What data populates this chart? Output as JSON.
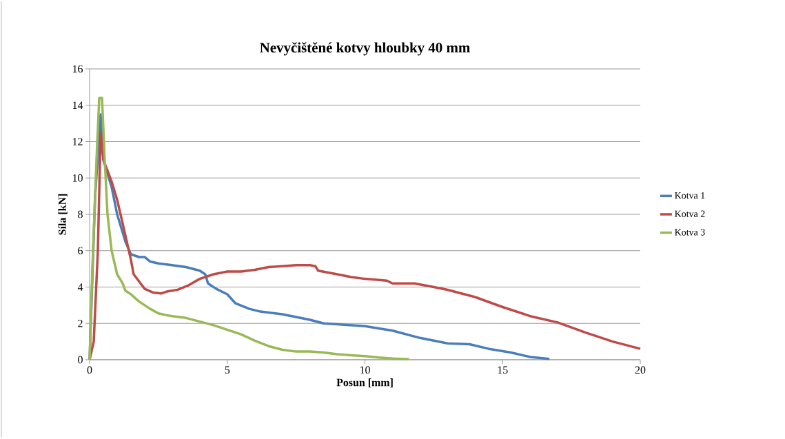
{
  "chart_data": {
    "type": "line",
    "title": "Nevyčištěné kotvy hloubky  40 mm",
    "xlabel": "Posun [mm]",
    "ylabel": "Síla [kN]",
    "xlim": [
      0,
      20
    ],
    "xticks": [
      0,
      5,
      10,
      15,
      20
    ],
    "ylim": [
      0,
      16
    ],
    "yticks": [
      0,
      2,
      4,
      6,
      8,
      10,
      12,
      14,
      16
    ],
    "grid": "y",
    "legend": "right",
    "marker": "none",
    "line_style": "solid",
    "series": [
      {
        "name": "Kotva 1",
        "color": "#4a7ebb",
        "x": [
          0,
          0.2,
          0.4,
          0.5,
          0.8,
          1.0,
          1.3,
          1.5,
          1.8,
          2.0,
          2.2,
          2.5,
          3,
          3.5,
          4,
          4.2,
          4.3,
          4.6,
          5,
          5.3,
          5.8,
          6.2,
          6.5,
          7,
          8,
          8.5,
          9,
          10,
          11,
          12,
          12.5,
          13,
          13.8,
          14.5,
          15.3,
          16,
          16.7
        ],
        "values": [
          0,
          9,
          13.5,
          11,
          9.5,
          8,
          6.5,
          5.8,
          5.65,
          5.65,
          5.4,
          5.3,
          5.2,
          5.1,
          4.9,
          4.7,
          4.2,
          3.9,
          3.6,
          3.1,
          2.8,
          2.65,
          2.6,
          2.5,
          2.2,
          2.0,
          1.95,
          1.85,
          1.6,
          1.2,
          1.05,
          0.9,
          0.85,
          0.6,
          0.4,
          0.15,
          0.05
        ]
      },
      {
        "name": "Kotva 2",
        "color": "#be4b48",
        "x": [
          0,
          0.15,
          0.3,
          0.4,
          0.5,
          0.8,
          1.0,
          1.2,
          1.5,
          1.6,
          1.7,
          2,
          2.3,
          2.6,
          2.8,
          3.2,
          3.6,
          4,
          4.5,
          5,
          5.5,
          6,
          6.5,
          7,
          7.5,
          8,
          8.2,
          8.3,
          9,
          9.5,
          10,
          10.8,
          11,
          11.8,
          12.5,
          13,
          14,
          15,
          16,
          17,
          18,
          19,
          20
        ],
        "values": [
          0,
          1,
          6,
          12.5,
          11,
          9.8,
          8.8,
          7.5,
          5.5,
          4.7,
          4.5,
          3.9,
          3.7,
          3.65,
          3.75,
          3.85,
          4.1,
          4.45,
          4.7,
          4.85,
          4.85,
          4.95,
          5.1,
          5.15,
          5.2,
          5.2,
          5.15,
          4.9,
          4.7,
          4.55,
          4.45,
          4.35,
          4.2,
          4.2,
          4.0,
          3.85,
          3.45,
          2.9,
          2.4,
          2.05,
          1.5,
          1.0,
          0.6
        ]
      },
      {
        "name": "Kotva 3",
        "color": "#98b954",
        "x": [
          0,
          0.1,
          0.25,
          0.35,
          0.45,
          0.55,
          0.65,
          0.8,
          1,
          1.2,
          1.3,
          1.5,
          1.8,
          2.2,
          2.5,
          2.8,
          3,
          3.5,
          4,
          4.5,
          5,
          5.5,
          6,
          6.5,
          7,
          7.5,
          8,
          8.5,
          9,
          9.5,
          10,
          10.5,
          11,
          11.6
        ],
        "values": [
          0,
          5,
          11,
          14.4,
          14.4,
          11,
          8,
          6,
          4.7,
          4.2,
          3.8,
          3.6,
          3.2,
          2.8,
          2.55,
          2.45,
          2.4,
          2.3,
          2.1,
          1.9,
          1.65,
          1.4,
          1.05,
          0.75,
          0.55,
          0.45,
          0.45,
          0.4,
          0.3,
          0.25,
          0.2,
          0.12,
          0.07,
          0.03
        ]
      }
    ]
  }
}
